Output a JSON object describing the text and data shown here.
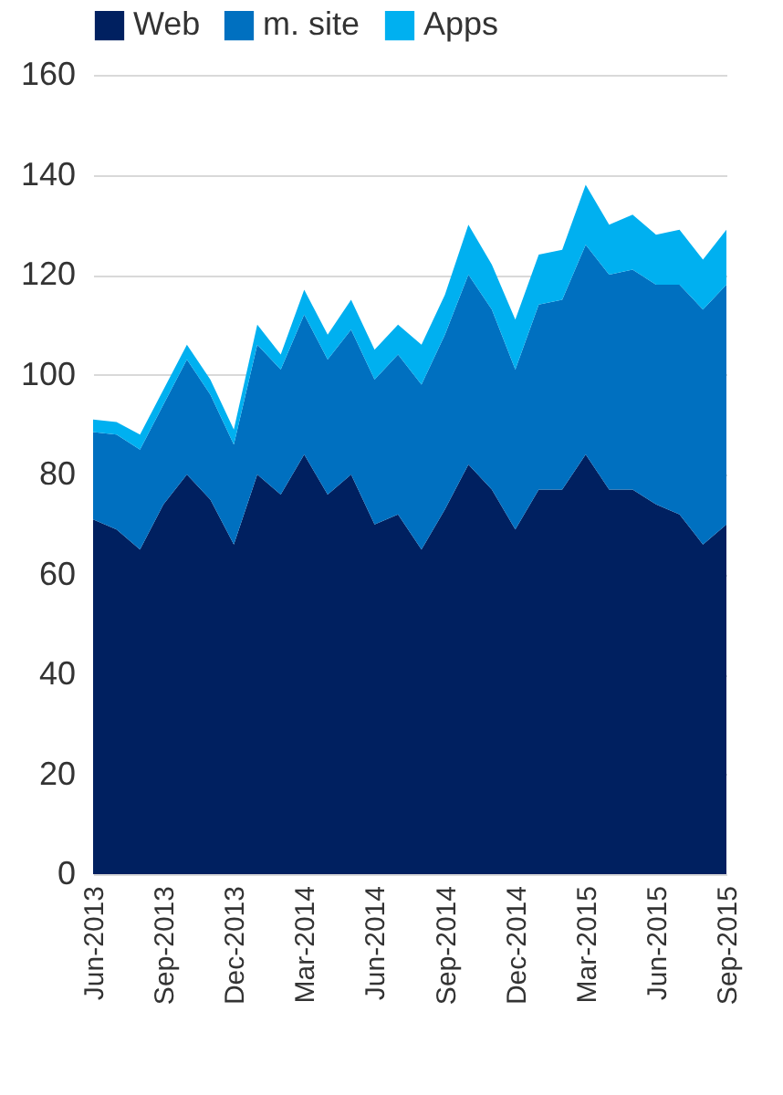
{
  "chart_data": {
    "type": "area",
    "stacked": true,
    "categories": [
      "Jun-2013",
      null,
      null,
      "Sep-2013",
      null,
      null,
      "Dec-2013",
      null,
      null,
      "Mar-2014",
      null,
      null,
      "Jun-2014",
      null,
      null,
      "Sep-2014",
      null,
      null,
      "Dec-2014",
      null,
      null,
      "Mar-2015",
      null,
      null,
      "Jun-2015",
      null,
      null,
      "Sep-2015"
    ],
    "series": [
      {
        "name": "Web",
        "color": "#002060",
        "values": [
          71,
          69,
          65,
          74,
          80,
          75,
          66,
          80,
          76,
          84,
          76,
          80,
          70,
          72,
          65,
          73,
          82,
          77,
          69,
          77,
          77,
          84,
          77,
          77,
          74,
          72,
          66,
          70
        ]
      },
      {
        "name": "m. site",
        "color": "#0070c0",
        "values": [
          17.5,
          19,
          20,
          20,
          23,
          21,
          20,
          26,
          25,
          28,
          27,
          29,
          29,
          32,
          33,
          35,
          38,
          36,
          32,
          37,
          38,
          42,
          43,
          44,
          44,
          46,
          47,
          48
        ]
      },
      {
        "name": "Apps",
        "color": "#00b0f0",
        "values": [
          2.5,
          2.5,
          3,
          3,
          3,
          3,
          3,
          4,
          3,
          5,
          5,
          6,
          6,
          6,
          8,
          8,
          10,
          9,
          10,
          10,
          10,
          12,
          10,
          11,
          10,
          11,
          10,
          11
        ]
      }
    ],
    "ylim": [
      0,
      160
    ],
    "yticks": [
      0,
      20,
      40,
      60,
      80,
      100,
      120,
      140,
      160
    ],
    "grid": "y",
    "legend": "top"
  }
}
